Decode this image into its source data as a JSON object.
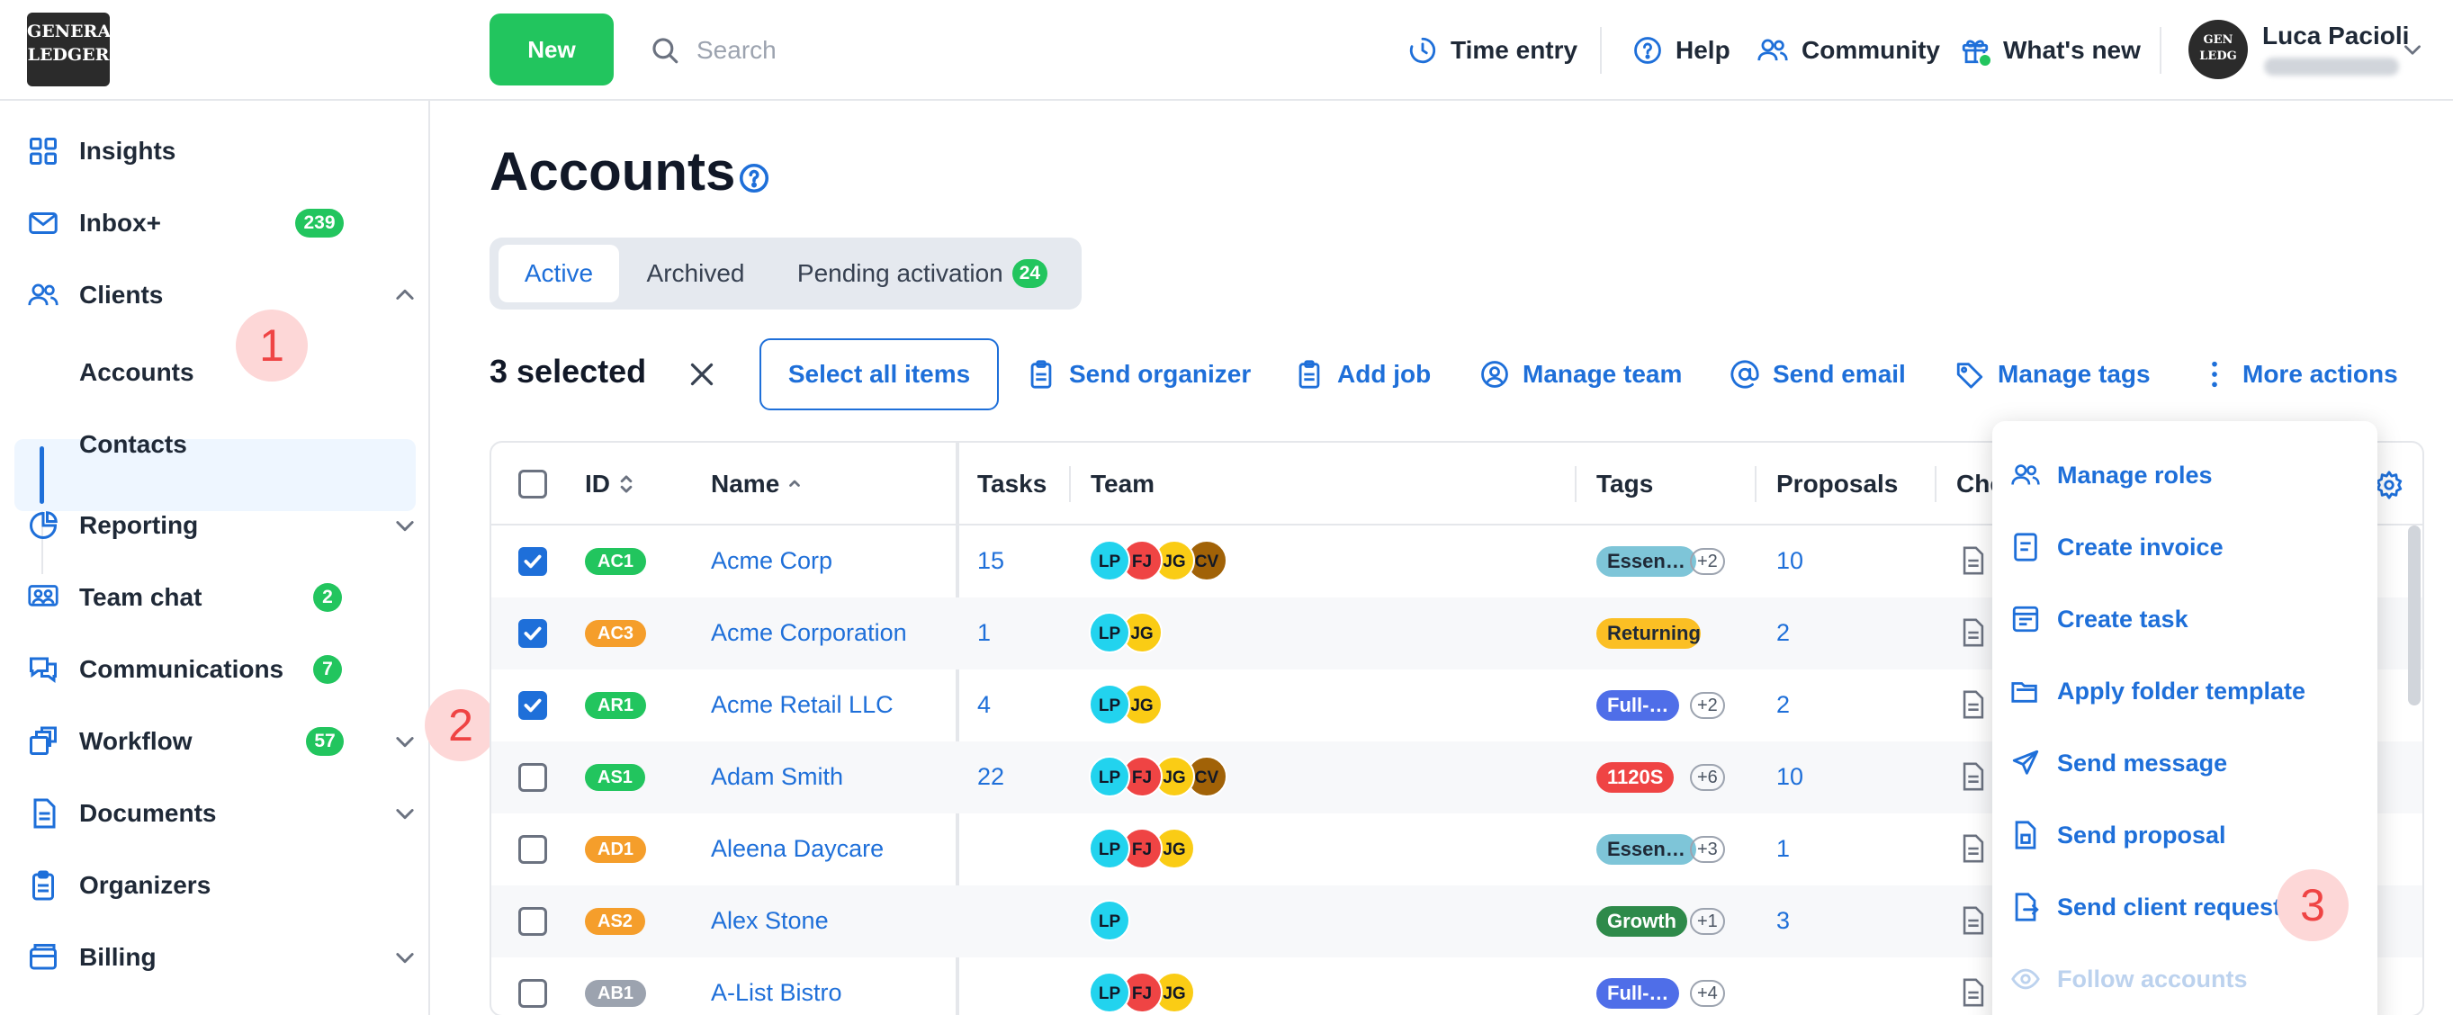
{
  "app": {
    "logo_text": "GENERAL LEDGER",
    "new_button": "New",
    "search_placeholder": "Search",
    "nav": {
      "time_entry": "Time entry",
      "help": "Help",
      "community": "Community",
      "whats_new": "What's new"
    },
    "user_name": "Luca Pacioli"
  },
  "sidebar": {
    "items": [
      {
        "label": "Insights",
        "icon": "grid-icon"
      },
      {
        "label": "Inbox+",
        "badge": "239",
        "icon": "mail-icon"
      },
      {
        "label": "Clients",
        "icon": "users-icon",
        "expanded": true
      },
      {
        "label": "Reporting",
        "icon": "pie-chart-icon"
      },
      {
        "label": "Team chat",
        "badge": "2",
        "icon": "chat-icon"
      },
      {
        "label": "Communications",
        "badge": "7",
        "icon": "messages-icon"
      },
      {
        "label": "Workflow",
        "badge": "57",
        "icon": "workflow-icon"
      },
      {
        "label": "Documents",
        "icon": "document-icon"
      },
      {
        "label": "Organizers",
        "icon": "clipboard-icon"
      },
      {
        "label": "Billing",
        "icon": "billing-icon"
      }
    ],
    "sub_items": [
      "Accounts",
      "Contacts"
    ]
  },
  "markers": [
    "1",
    "2",
    "3"
  ],
  "page": {
    "title": "Accounts",
    "tabs": [
      {
        "label": "Active",
        "active": true
      },
      {
        "label": "Archived"
      },
      {
        "label": "Pending activation",
        "badge": "24"
      }
    ]
  },
  "actionbar": {
    "selected": "3 selected",
    "select_all": "Select all items",
    "actions": [
      "Send organizer",
      "Add job",
      "Manage team",
      "Send email",
      "Manage tags",
      "More actions"
    ]
  },
  "table": {
    "columns": [
      "ID",
      "Name",
      "Tasks",
      "Team",
      "Tags",
      "Proposals",
      "Che"
    ],
    "rows": [
      {
        "checked": true,
        "id": "AC1",
        "id_color": "#22c55e",
        "name": "Acme Corp",
        "tasks": "15",
        "team": [
          "LP",
          "FJ",
          "JG",
          "CV"
        ],
        "tag": "Essen…",
        "tag_bg": "#7ec5d8",
        "tag_fg": "#1f2937",
        "tag_more": "+2",
        "proposals": "10"
      },
      {
        "checked": true,
        "id": "AC3",
        "id_color": "#f59e2b",
        "name": "Acme Corporation",
        "tasks": "1",
        "team": [
          "LP",
          "JG"
        ],
        "tag": "Returning…",
        "tag_bg": "#fbbf24",
        "tag_fg": "#1f2937",
        "tag_more": "",
        "proposals": "2"
      },
      {
        "checked": true,
        "id": "AR1",
        "id_color": "#22c55e",
        "name": "Acme Retail LLC",
        "tasks": "4",
        "team": [
          "LP",
          "JG"
        ],
        "tag": "Full-…",
        "tag_bg": "#4f6ee8",
        "tag_fg": "#ffffff",
        "tag_more": "+2",
        "proposals": "2"
      },
      {
        "checked": false,
        "id": "AS1",
        "id_color": "#22c55e",
        "name": "Adam Smith",
        "tasks": "22",
        "team": [
          "LP",
          "FJ",
          "JG",
          "CV"
        ],
        "tag": "1120S",
        "tag_bg": "#ef4444",
        "tag_fg": "#ffffff",
        "tag_more": "+6",
        "proposals": "10"
      },
      {
        "checked": false,
        "id": "AD1",
        "id_color": "#f59e2b",
        "name": "Aleena Daycare",
        "tasks": "",
        "team": [
          "LP",
          "FJ",
          "JG"
        ],
        "tag": "Essen…",
        "tag_bg": "#7ec5d8",
        "tag_fg": "#1f2937",
        "tag_more": "+3",
        "proposals": "1"
      },
      {
        "checked": false,
        "id": "AS2",
        "id_color": "#f59e2b",
        "name": "Alex Stone",
        "tasks": "",
        "team": [
          "LP"
        ],
        "tag": "Growth",
        "tag_bg": "#2e8a4a",
        "tag_fg": "#ffffff",
        "tag_more": "+1",
        "proposals": "3"
      },
      {
        "checked": false,
        "id": "AB1",
        "id_color": "#9ca3af",
        "name": "A-List Bistro",
        "tasks": "",
        "team": [
          "LP",
          "FJ",
          "JG"
        ],
        "tag": "Full-…",
        "tag_bg": "#4f6ee8",
        "tag_fg": "#ffffff",
        "tag_more": "+4",
        "proposals": ""
      }
    ]
  },
  "avatar_colors": {
    "LP": "#22d3ee",
    "FJ": "#ef4444",
    "JG": "#facc15",
    "CV": "#a16207"
  },
  "menu": {
    "items": [
      {
        "label": "Manage roles",
        "icon": "users-icon"
      },
      {
        "label": "Create invoice",
        "icon": "invoice-icon"
      },
      {
        "label": "Create task",
        "icon": "task-icon"
      },
      {
        "label": "Apply folder template",
        "icon": "folder-icon"
      },
      {
        "label": "Send message",
        "icon": "send-icon"
      },
      {
        "label": "Send proposal",
        "icon": "proposal-icon"
      },
      {
        "label": "Send client request",
        "icon": "request-icon"
      },
      {
        "label": "Follow accounts",
        "icon": "eye-icon",
        "disabled": true
      }
    ]
  }
}
